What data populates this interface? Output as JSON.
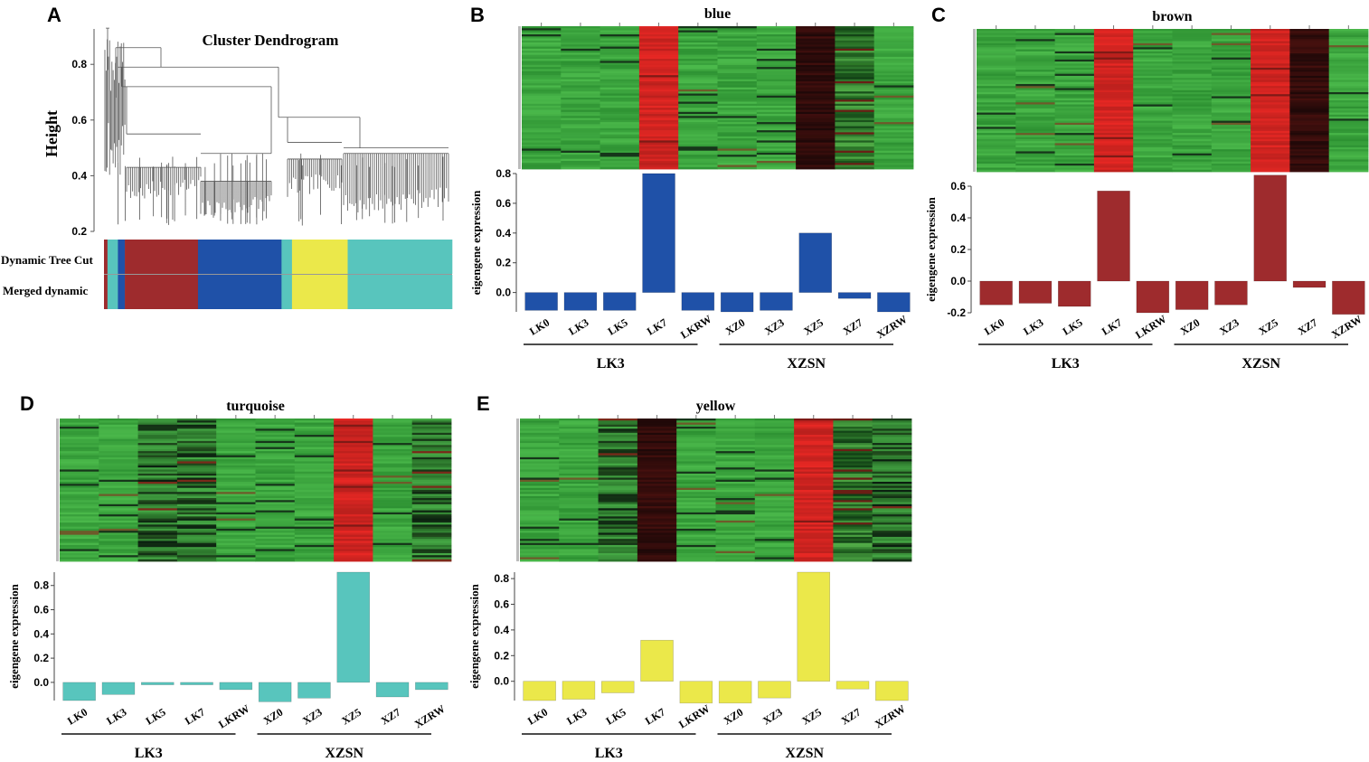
{
  "panels": {
    "A": {
      "letter": "A",
      "title": "Cluster Dendrogram",
      "ylabel": "Height",
      "yticks": [
        "0.2",
        "0.4",
        "0.6",
        "0.8"
      ],
      "row1_label": "Dynamic Tree Cut",
      "row2_label": "Merged dynamic"
    },
    "B": {
      "letter": "B"
    },
    "C": {
      "letter": "C"
    },
    "D": {
      "letter": "D"
    },
    "E": {
      "letter": "E"
    }
  },
  "colors": {
    "turquoise": "#58c5bd",
    "brown": "#9e2b2d",
    "blue": "#1f51a8",
    "yellow": "#ebe84a",
    "heat_green": "#3a9e3a",
    "heat_red": "#ea2b26",
    "heat_dark": "#2a0c0c"
  },
  "chart_data": [
    {
      "type": "bar",
      "title": "blue",
      "color": "#1f51a8",
      "categories": [
        "LK0",
        "LK3",
        "LK5",
        "LK7",
        "LKRW",
        "XZ0",
        "XZ3",
        "XZ5",
        "XZ7",
        "XZRW"
      ],
      "values": [
        -0.12,
        -0.12,
        -0.12,
        0.8,
        -0.12,
        -0.13,
        -0.12,
        0.4,
        -0.04,
        -0.13
      ],
      "ylim": [
        -0.13,
        0.8
      ],
      "yticks": [
        "0.0",
        "0.2",
        "0.4",
        "0.6",
        "0.8"
      ],
      "ylabel": "eigengene expression",
      "groups": [
        "LK3",
        "XZSN"
      ],
      "heatmap_pattern": [
        "g",
        "g",
        "g",
        "r",
        "g",
        "g",
        "g",
        "k",
        "m",
        "g"
      ]
    },
    {
      "type": "bar",
      "title": "brown",
      "color": "#9e2b2d",
      "categories": [
        "LK0",
        "LK3",
        "LK5",
        "LK7",
        "LKRW",
        "XZ0",
        "XZ3",
        "XZ5",
        "XZ7",
        "XZRW"
      ],
      "values": [
        -0.15,
        -0.14,
        -0.16,
        0.57,
        -0.2,
        -0.18,
        -0.15,
        0.67,
        -0.04,
        -0.21
      ],
      "ylim": [
        -0.2,
        0.6
      ],
      "yticks": [
        "-0.2",
        "0.0",
        "0.2",
        "0.4",
        "0.6"
      ],
      "ylabel": "eigengene expression",
      "groups": [
        "LK3",
        "XZSN"
      ],
      "heatmap_pattern": [
        "g",
        "g",
        "g",
        "r",
        "g",
        "g",
        "g",
        "r",
        "k",
        "g"
      ]
    },
    {
      "type": "bar",
      "title": "turquoise",
      "color": "#58c5bd",
      "categories": [
        "LK0",
        "LK3",
        "LK5",
        "LK7",
        "LKRW",
        "XZ0",
        "XZ3",
        "XZ5",
        "XZ7",
        "XZRW"
      ],
      "values": [
        -0.15,
        -0.1,
        -0.02,
        -0.02,
        -0.06,
        -0.16,
        -0.13,
        0.91,
        -0.12,
        -0.06
      ],
      "ylim": [
        -0.15,
        0.91
      ],
      "yticks": [
        "0.0",
        "0.2",
        "0.4",
        "0.6",
        "0.8"
      ],
      "ylabel": "eigengene expression",
      "groups": [
        "LK3",
        "XZSN"
      ],
      "heatmap_pattern": [
        "g",
        "g",
        "d",
        "d",
        "g",
        "g",
        "g",
        "r",
        "g",
        "d"
      ]
    },
    {
      "type": "bar",
      "title": "yellow",
      "color": "#ebe84a",
      "categories": [
        "LK0",
        "LK3",
        "LK5",
        "LK7",
        "LKRW",
        "XZ0",
        "XZ3",
        "XZ5",
        "XZ7",
        "XZRW"
      ],
      "values": [
        -0.15,
        -0.14,
        -0.09,
        0.32,
        -0.17,
        -0.17,
        -0.13,
        0.85,
        -0.06,
        -0.15
      ],
      "ylim": [
        -0.15,
        0.85
      ],
      "yticks": [
        "0.0",
        "0.2",
        "0.4",
        "0.6",
        "0.8"
      ],
      "ylabel": "eigengene expression",
      "groups": [
        "LK3",
        "XZSN"
      ],
      "heatmap_pattern": [
        "g",
        "g",
        "d",
        "k",
        "g",
        "g",
        "g",
        "r",
        "m",
        "d"
      ]
    }
  ],
  "dendrogram": {
    "height_range": [
      0.2,
      0.95
    ],
    "module_bar_sequence": [
      {
        "color": "brown",
        "width": 0.01
      },
      {
        "color": "turquoise",
        "width": 0.03
      },
      {
        "color": "blue",
        "width": 0.02
      },
      {
        "color": "brown",
        "width": 0.21
      },
      {
        "color": "blue",
        "width": 0.24
      },
      {
        "color": "turquoise",
        "width": 0.03
      },
      {
        "color": "yellow",
        "width": 0.16
      },
      {
        "color": "turquoise",
        "width": 0.3
      }
    ]
  }
}
